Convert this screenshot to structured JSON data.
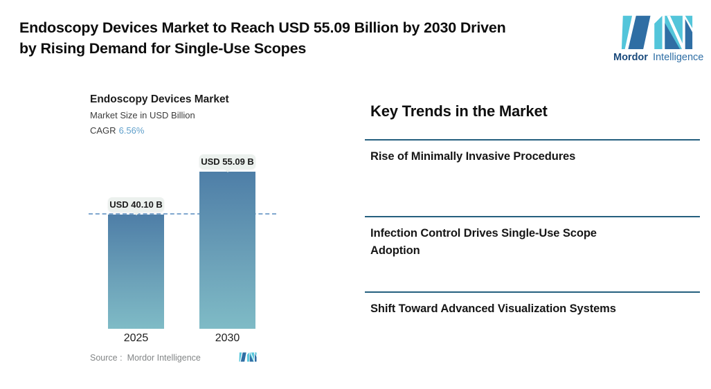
{
  "header": {
    "title": "Endoscopy Devices Market to Reach USD 55.09 Billion by 2030 Driven\nby Rising Demand for Single-Use Scopes",
    "brand": {
      "name_bold": "Mordor",
      "name_light": "Intelligence"
    }
  },
  "chart": {
    "title": "Endoscopy Devices Market",
    "subtitle": "Market Size in USD Billion",
    "cagr_label": "CAGR",
    "cagr_value": "6.56%",
    "source_label": "Source :",
    "source_value": "Mordor Intelligence"
  },
  "chart_data": {
    "type": "bar",
    "title": "Endoscopy Devices Market",
    "ylabel": "Market Size in USD Billion",
    "categories": [
      "2025",
      "2030"
    ],
    "values": [
      40.1,
      55.09
    ],
    "value_labels": [
      "USD 40.10 B",
      "USD 55.09 B"
    ],
    "cagr_pct": 6.56,
    "ylim": [
      0,
      60
    ],
    "grid": false,
    "reference_line": "horizontal dashed line at 2025 value (40.10)",
    "bar_gradient": [
      "#4E7EA7",
      "#7FBBC6"
    ]
  },
  "trends": {
    "heading": "Key Trends in the Market",
    "items": [
      "Rise of Minimally Invasive Procedures",
      "Infection Control Drives Single-Use Scope\nAdoption",
      "Shift Toward Advanced Visualization Systems"
    ]
  },
  "colors": {
    "logo_teal": "#53C5DA",
    "logo_blue": "#2F6EA4",
    "brand_text_bold": "#19497B",
    "brand_text_light": "#2E6EA5",
    "divider": "#245F7E",
    "cagr_value": "#5F9FCB",
    "dashed_line": "#7FA7CE",
    "pill_bg": "#ECF1EE",
    "source_text": "#838687",
    "title_text": "#0d0d0d"
  }
}
